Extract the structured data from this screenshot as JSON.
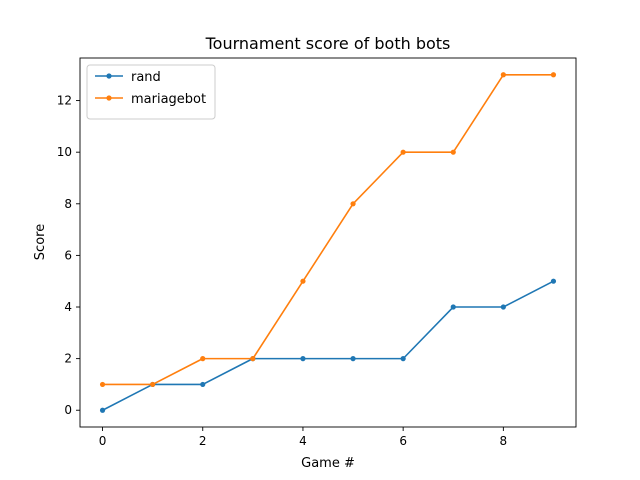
{
  "chart_data": {
    "type": "line",
    "title": "Tournament score of both bots",
    "xlabel": "Game #",
    "ylabel": "Score",
    "xlim": [
      -0.45,
      9.45
    ],
    "ylim": [
      -0.65,
      13.65
    ],
    "xticks": [
      0,
      2,
      4,
      6,
      8
    ],
    "yticks": [
      0,
      2,
      4,
      6,
      8,
      10,
      12
    ],
    "grid": false,
    "legend_position": "top-left",
    "x": [
      0,
      1,
      2,
      3,
      4,
      5,
      6,
      7,
      8,
      9
    ],
    "series": [
      {
        "name": "rand",
        "color": "#1f77b4",
        "values": [
          0,
          1,
          1,
          2,
          2,
          2,
          2,
          4,
          4,
          5
        ]
      },
      {
        "name": "mariagebot",
        "color": "#ff7f0e",
        "values": [
          1,
          1,
          2,
          2,
          5,
          8,
          10,
          10,
          13,
          13
        ]
      }
    ]
  }
}
